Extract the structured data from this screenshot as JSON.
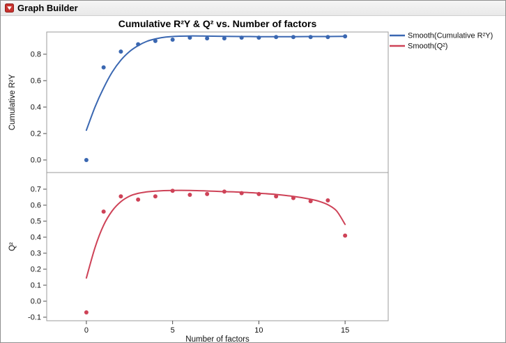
{
  "window": {
    "title": "Graph Builder"
  },
  "chart_data": {
    "type": "scatter",
    "title": "Cumulative R²Y & Q² vs. Number of factors",
    "xlabel": "Number of factors",
    "xlim": [
      -2.3,
      17.5
    ],
    "x_ticks": [
      0,
      5,
      10,
      15
    ],
    "legend_position": "right",
    "legend": [
      {
        "label": "Smooth(Cumulative R²Y)",
        "color": "#3a67b1"
      },
      {
        "label": "Smooth(Q²)",
        "color": "#ce4257"
      }
    ],
    "panels": [
      {
        "ylabel": "Cumulative R²Y",
        "ylim": [
          -0.095,
          0.968
        ],
        "y_ticks": [
          0.0,
          0.2,
          0.4,
          0.6,
          0.8
        ],
        "color": "#3a67b1",
        "points": {
          "x": [
            0,
            1,
            2,
            3,
            4,
            5,
            6,
            7,
            8,
            9,
            10,
            11,
            12,
            13,
            14,
            15
          ],
          "y": [
            0.0,
            0.7,
            0.82,
            0.875,
            0.9,
            0.91,
            0.925,
            0.92,
            0.92,
            0.925,
            0.925,
            0.93,
            0.93,
            0.93,
            0.93,
            0.935
          ]
        },
        "smooth": {
          "x": [
            0,
            0.5,
            1,
            1.5,
            2,
            2.5,
            3,
            3.5,
            4,
            4.5,
            5,
            6,
            7,
            8,
            9,
            10,
            11,
            12,
            13,
            14,
            15
          ],
          "y": [
            0.225,
            0.4,
            0.545,
            0.665,
            0.755,
            0.82,
            0.865,
            0.897,
            0.916,
            0.928,
            0.934,
            0.938,
            0.937,
            0.935,
            0.934,
            0.933,
            0.933,
            0.933,
            0.934,
            0.934,
            0.935
          ]
        }
      },
      {
        "ylabel": "Q²",
        "ylim": [
          -0.122,
          0.804
        ],
        "y_ticks": [
          -0.1,
          0.0,
          0.1,
          0.2,
          0.3,
          0.4,
          0.5,
          0.6,
          0.7
        ],
        "color": "#ce4257",
        "points": {
          "x": [
            0,
            1,
            2,
            3,
            4,
            5,
            6,
            7,
            8,
            9,
            10,
            11,
            12,
            13,
            14,
            15
          ],
          "y": [
            -0.07,
            0.56,
            0.655,
            0.635,
            0.655,
            0.69,
            0.665,
            0.67,
            0.685,
            0.675,
            0.67,
            0.655,
            0.645,
            0.625,
            0.63,
            0.41
          ]
        },
        "smooth": {
          "x": [
            0,
            0.5,
            1,
            1.5,
            2,
            2.5,
            3,
            3.5,
            4,
            5,
            6,
            7,
            8,
            9,
            10,
            11,
            12,
            13,
            13.5,
            14,
            14.5,
            15
          ],
          "y": [
            0.145,
            0.335,
            0.475,
            0.565,
            0.622,
            0.656,
            0.674,
            0.683,
            0.688,
            0.692,
            0.692,
            0.689,
            0.685,
            0.681,
            0.675,
            0.667,
            0.655,
            0.637,
            0.624,
            0.603,
            0.565,
            0.48
          ]
        }
      }
    ]
  }
}
